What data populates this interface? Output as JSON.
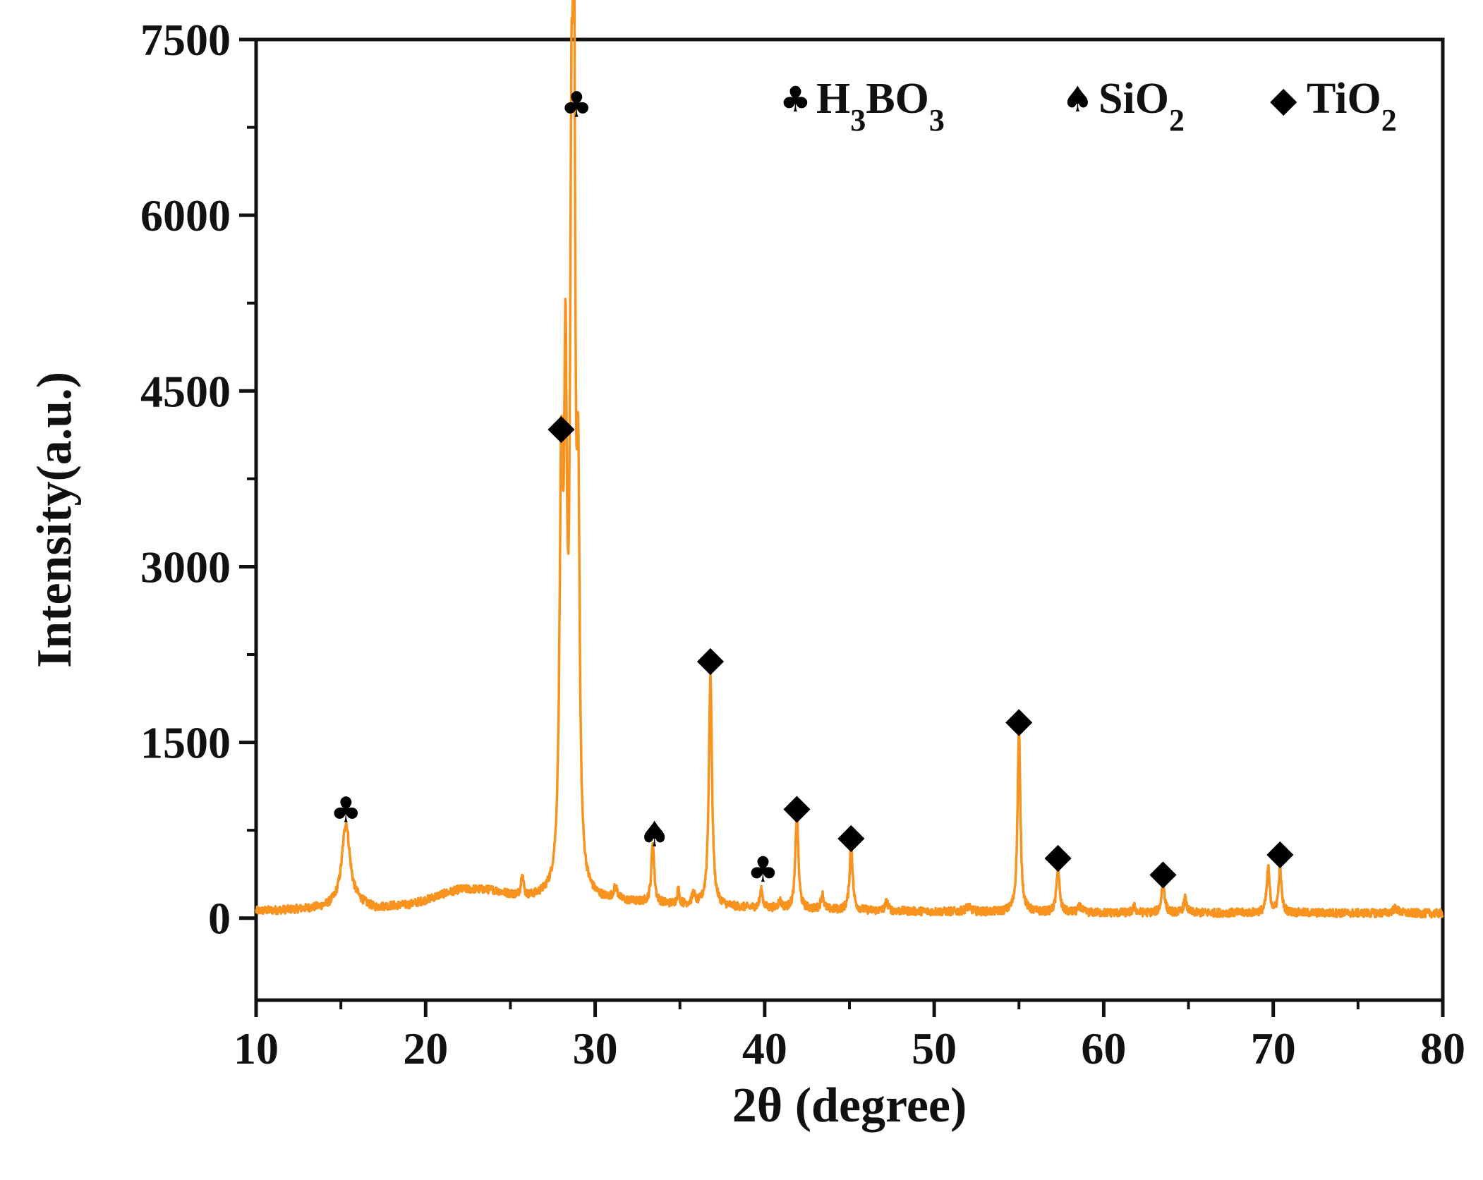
{
  "chart_data": {
    "type": "line",
    "xlabel": "2θ (degree)",
    "ylabel": "Intensity(a.u.)",
    "xlim": [
      10,
      80
    ],
    "ylim": [
      -700,
      7500
    ],
    "x_ticks": [
      10,
      20,
      30,
      40,
      50,
      60,
      70,
      80
    ],
    "y_ticks": [
      0,
      1500,
      3000,
      4500,
      6000,
      7500
    ],
    "line_color": "#f7931e",
    "background_profile": [
      [
        10,
        60
      ],
      [
        12,
        70
      ],
      [
        14,
        85
      ],
      [
        15,
        110
      ],
      [
        16,
        120
      ],
      [
        17,
        80
      ],
      [
        18,
        100
      ],
      [
        19,
        110
      ],
      [
        20,
        150
      ],
      [
        21,
        200
      ],
      [
        22,
        240
      ],
      [
        23,
        240
      ],
      [
        24,
        230
      ],
      [
        25,
        190
      ],
      [
        26,
        160
      ],
      [
        27,
        160
      ],
      [
        28,
        150
      ],
      [
        30,
        140
      ],
      [
        32,
        130
      ],
      [
        35,
        110
      ],
      [
        40,
        80
      ],
      [
        45,
        65
      ],
      [
        50,
        55
      ],
      [
        55,
        50
      ],
      [
        60,
        45
      ],
      [
        70,
        45
      ],
      [
        80,
        40
      ]
    ],
    "peaks": [
      {
        "x": 15.3,
        "height": 700,
        "width": 0.28
      },
      {
        "x": 25.7,
        "height": 200,
        "width": 0.08
      },
      {
        "x": 28.0,
        "height": 3300,
        "width": 0.12
      },
      {
        "x": 28.25,
        "height": 3900,
        "width": 0.1
      },
      {
        "x": 28.6,
        "height": 5000,
        "width": 0.1
      },
      {
        "x": 28.75,
        "height": 6600,
        "width": 0.09
      },
      {
        "x": 29.0,
        "height": 3000,
        "width": 0.1
      },
      {
        "x": 31.2,
        "height": 100,
        "width": 0.15
      },
      {
        "x": 33.4,
        "height": 520,
        "width": 0.1
      },
      {
        "x": 34.9,
        "height": 120,
        "width": 0.08
      },
      {
        "x": 35.8,
        "height": 90,
        "width": 0.1
      },
      {
        "x": 36.8,
        "height": 1980,
        "width": 0.11
      },
      {
        "x": 39.8,
        "height": 150,
        "width": 0.1
      },
      {
        "x": 40.9,
        "height": 60,
        "width": 0.12
      },
      {
        "x": 41.9,
        "height": 850,
        "width": 0.1
      },
      {
        "x": 43.4,
        "height": 130,
        "width": 0.1
      },
      {
        "x": 45.1,
        "height": 590,
        "width": 0.1
      },
      {
        "x": 47.2,
        "height": 80,
        "width": 0.1
      },
      {
        "x": 52.0,
        "height": 40,
        "width": 0.2
      },
      {
        "x": 55.0,
        "height": 1550,
        "width": 0.1
      },
      {
        "x": 57.3,
        "height": 390,
        "width": 0.1
      },
      {
        "x": 58.6,
        "height": 50,
        "width": 0.12
      },
      {
        "x": 61.8,
        "height": 50,
        "width": 0.1
      },
      {
        "x": 63.5,
        "height": 290,
        "width": 0.1
      },
      {
        "x": 64.8,
        "height": 120,
        "width": 0.1
      },
      {
        "x": 69.7,
        "height": 380,
        "width": 0.1
      },
      {
        "x": 70.4,
        "height": 380,
        "width": 0.1
      },
      {
        "x": 77.2,
        "height": 40,
        "width": 0.2
      }
    ],
    "annotations": [
      {
        "symbol": "♣",
        "phase": "H3BO3",
        "x": 15.3,
        "y": 930
      },
      {
        "symbol": "♣",
        "phase": "H3BO3",
        "x": 28.9,
        "y": 6950
      },
      {
        "symbol": "◆",
        "phase": "TiO2",
        "x": 28.0,
        "y": 4200
      },
      {
        "symbol": "♠",
        "phase": "SiO2",
        "x": 33.5,
        "y": 720
      },
      {
        "symbol": "◆",
        "phase": "TiO2",
        "x": 36.8,
        "y": 2220
      },
      {
        "symbol": "♣",
        "phase": "H3BO3",
        "x": 39.9,
        "y": 420
      },
      {
        "symbol": "◆",
        "phase": "TiO2",
        "x": 41.9,
        "y": 960
      },
      {
        "symbol": "◆",
        "phase": "TiO2",
        "x": 45.1,
        "y": 710
      },
      {
        "symbol": "◆",
        "phase": "TiO2",
        "x": 55.0,
        "y": 1700
      },
      {
        "symbol": "◆",
        "phase": "TiO2",
        "x": 57.3,
        "y": 540
      },
      {
        "symbol": "◆",
        "phase": "TiO2",
        "x": 63.5,
        "y": 400
      },
      {
        "symbol": "◆",
        "phase": "TiO2",
        "x": 70.4,
        "y": 570
      }
    ],
    "legend": {
      "position": "top-right",
      "items": [
        {
          "symbol": "♣",
          "label": "H",
          "sub": "3",
          "label2": "BO",
          "sub2": "3"
        },
        {
          "symbol": "♠",
          "label": "SiO",
          "sub": "2"
        },
        {
          "symbol": "◆",
          "label": "TiO",
          "sub": "2"
        }
      ]
    }
  }
}
